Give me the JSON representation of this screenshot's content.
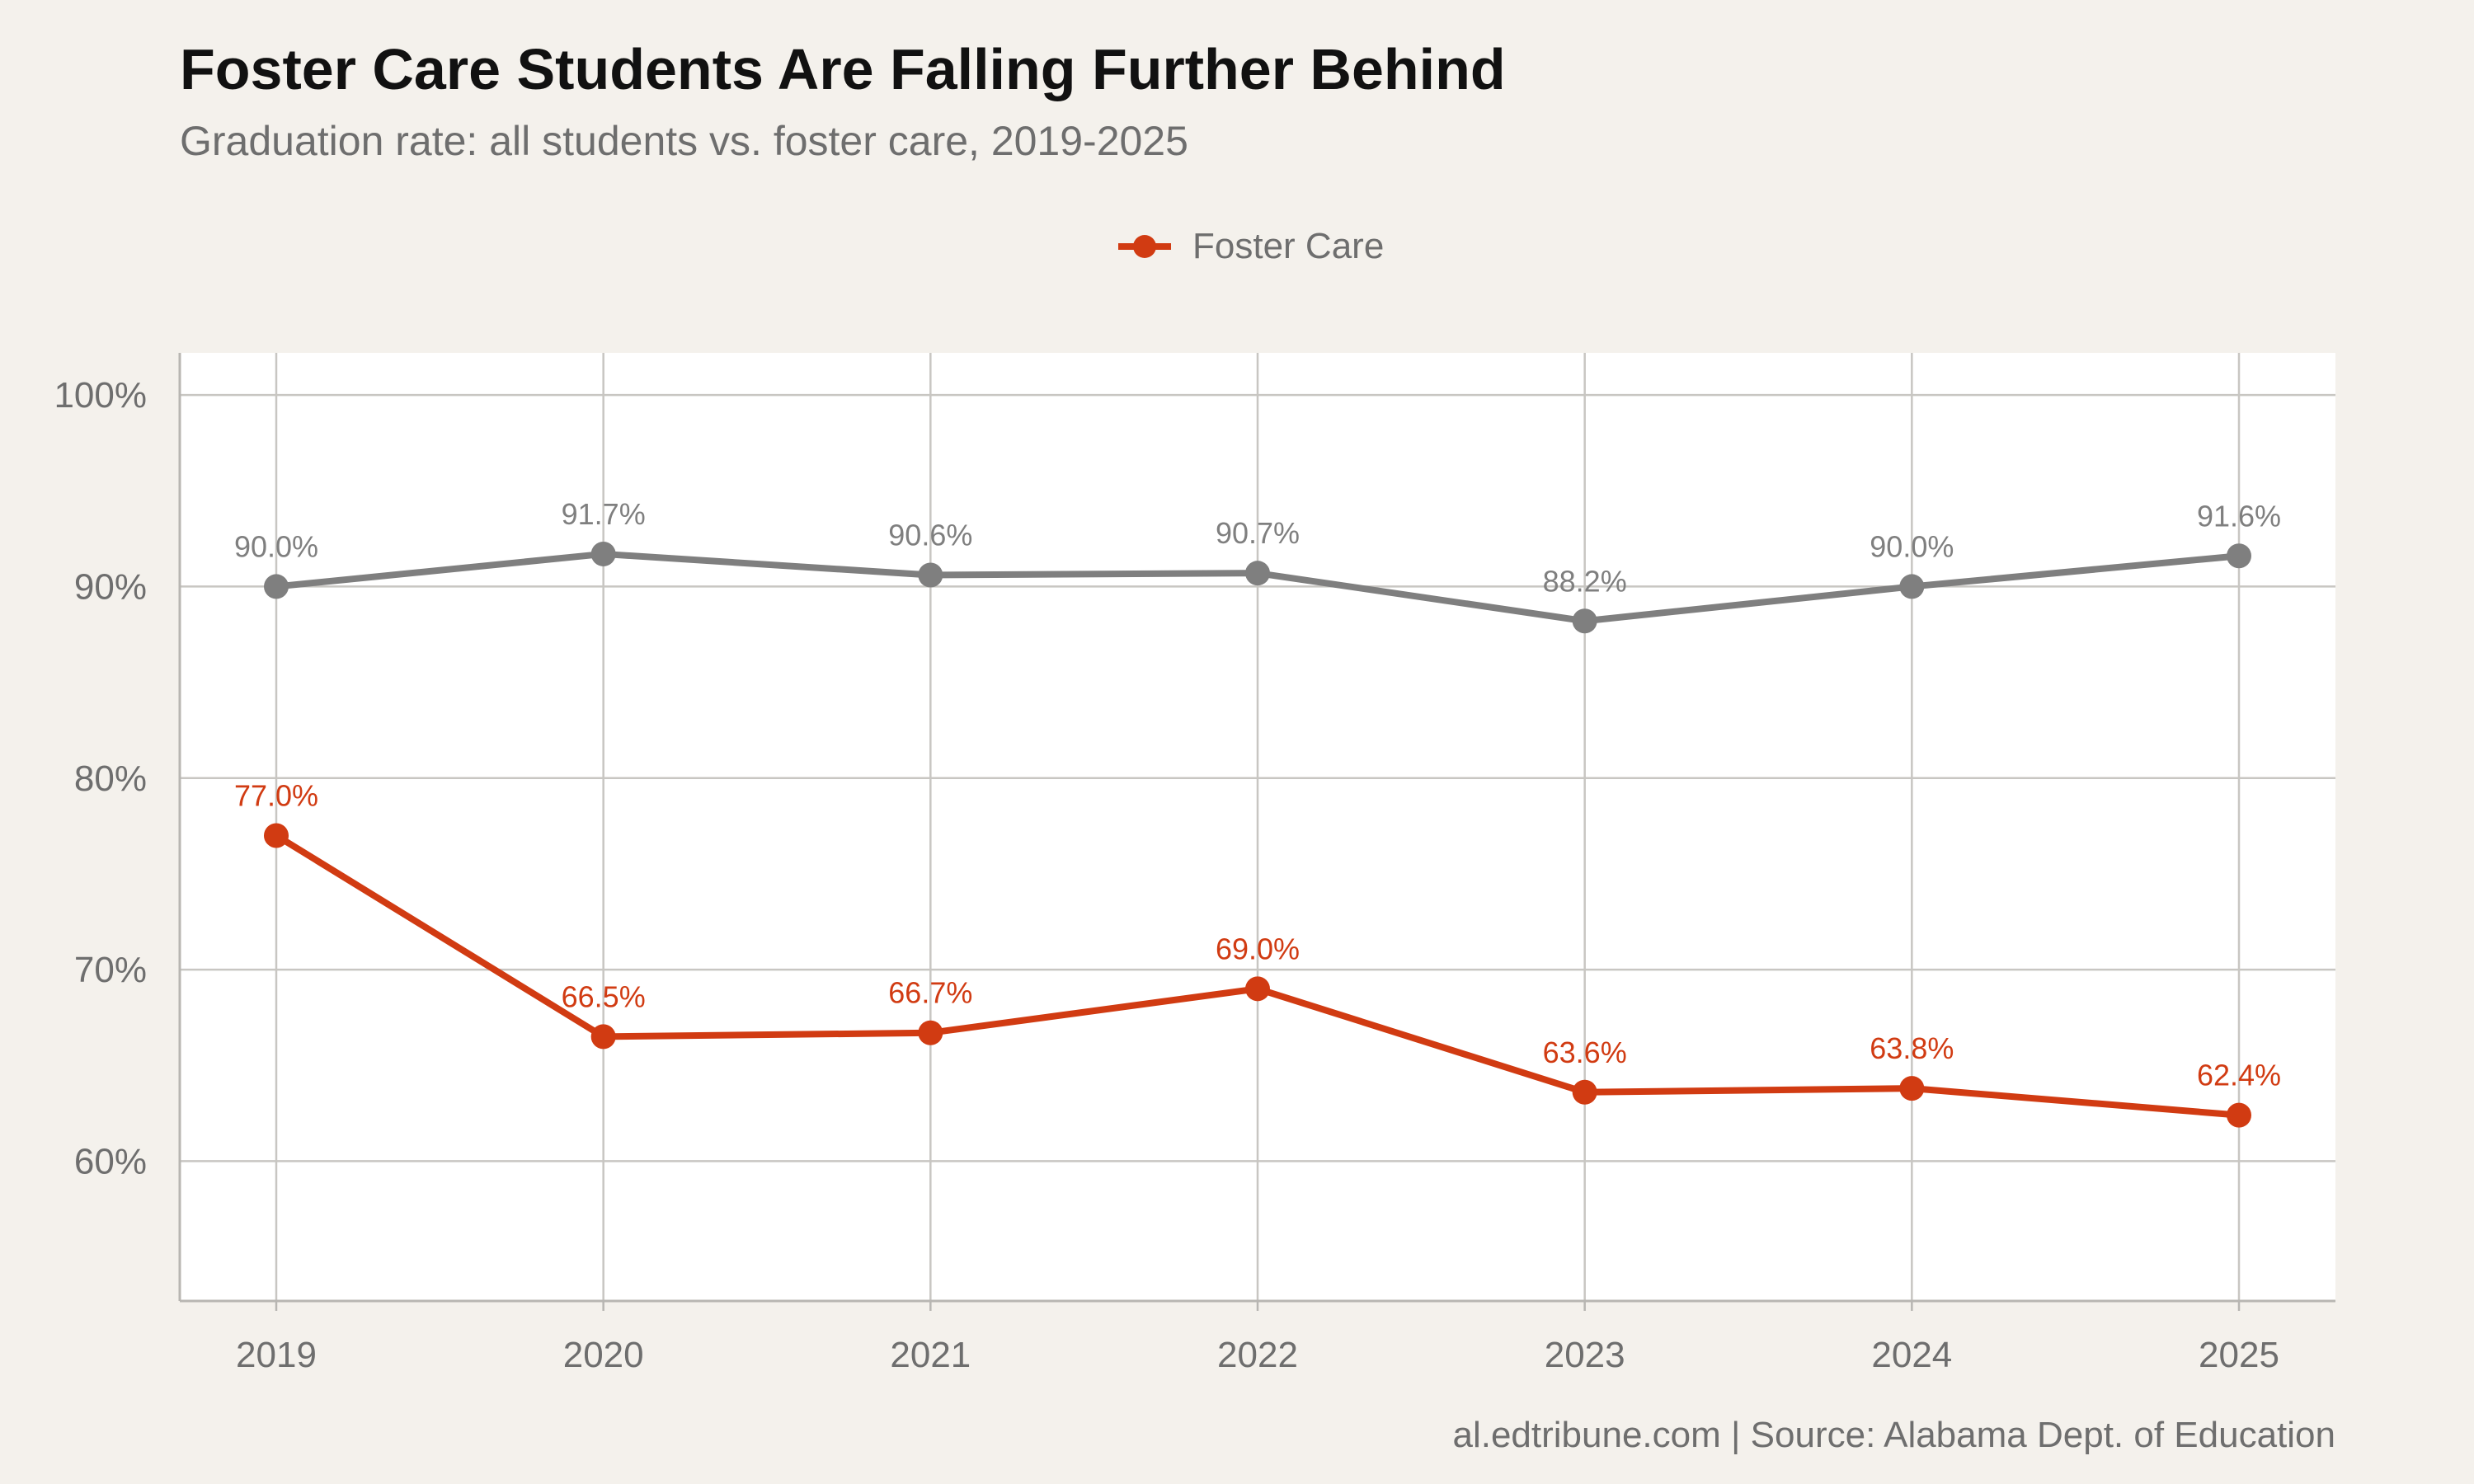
{
  "chart_data": {
    "type": "line",
    "title": "Foster Care Students Are Falling Further Behind",
    "subtitle": "Graduation rate: all students vs. foster care, 2019-2025",
    "caption": "al.edtribune.com | Source: Alabama Dept. of Education",
    "xlabel": "",
    "ylabel": "",
    "x": [
      "2019",
      "2020",
      "2021",
      "2022",
      "2023",
      "2024",
      "2025"
    ],
    "ylim": [
      52.7,
      102.2
    ],
    "yticks": [
      60,
      70,
      80,
      90,
      100
    ],
    "ytick_labels": [
      "60%",
      "70%",
      "80%",
      "90%",
      "100%"
    ],
    "grid": true,
    "legend_position": "top",
    "legend_entries": [
      "Foster Care"
    ],
    "series": [
      {
        "values": [
          90.0,
          91.7,
          90.6,
          90.7,
          88.2,
          90.0,
          91.6
        ],
        "labels": [
          "90.0%",
          "91.7%",
          "90.6%",
          "90.7%",
          "88.2%",
          "90.0%",
          "91.6%"
        ],
        "color": "#7f7f7f"
      },
      {
        "name": "Foster Care",
        "values": [
          77.0,
          66.5,
          66.7,
          69.0,
          63.6,
          63.8,
          62.4
        ],
        "labels": [
          "77.0%",
          "66.5%",
          "66.7%",
          "69.0%",
          "63.6%",
          "63.8%",
          "62.4%"
        ],
        "color": "#d13b12"
      }
    ]
  },
  "colors": {
    "background": "#f4f1ec",
    "panel": "#ffffff",
    "grid": "#c8c6c2",
    "axis": "#b8b6b2",
    "text_muted": "#6e6e6e",
    "title": "#111111"
  }
}
